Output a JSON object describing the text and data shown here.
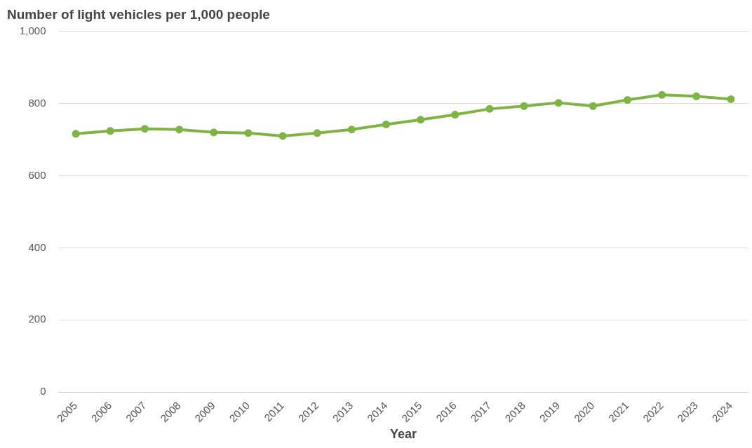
{
  "chart_data": {
    "type": "line",
    "title": "Number of light vehicles per 1,000 people",
    "xlabel": "Year",
    "categories": [
      "2005",
      "2006",
      "2007",
      "2008",
      "2009",
      "2010",
      "2011",
      "2012",
      "2013",
      "2014",
      "2015",
      "2016",
      "2017",
      "2018",
      "2019",
      "2020",
      "2021",
      "2022",
      "2023",
      "2024"
    ],
    "series": [
      {
        "color": "#7db443",
        "values": [
          716,
          724,
          730,
          728,
          720,
          718,
          710,
          718,
          728,
          742,
          755,
          769,
          785,
          793,
          802,
          793,
          810,
          824,
          820,
          812
        ]
      }
    ],
    "ylim": [
      0,
      1000
    ],
    "yticks": [
      0,
      200,
      400,
      600,
      800,
      {
        "value": 1000,
        "label": "1,000"
      }
    ],
    "grid": "y",
    "legend": false,
    "marker": "circle",
    "line_style": "solid"
  }
}
